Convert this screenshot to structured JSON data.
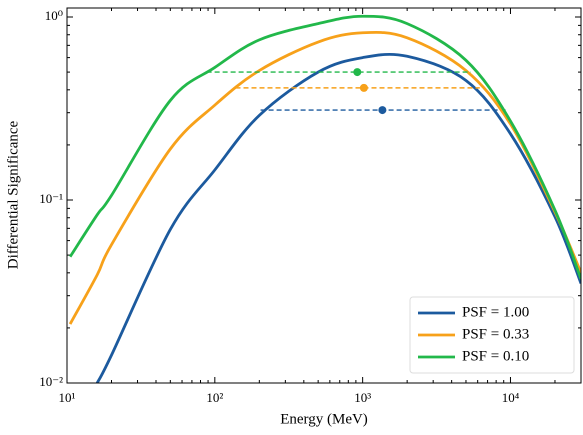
{
  "chart_data": {
    "type": "line",
    "xlabel": "Energy (MeV)",
    "ylabel": "Differential Significance",
    "xscale": "log",
    "yscale": "log",
    "xlim": [
      10,
      30000
    ],
    "ylim": [
      0.01,
      1.12
    ],
    "xticks": [
      {
        "value": 10,
        "label": "10¹"
      },
      {
        "value": 100,
        "label": "10²"
      },
      {
        "value": 1000,
        "label": "10³"
      },
      {
        "value": 10000,
        "label": "10⁴"
      }
    ],
    "yticks": [
      {
        "value": 0.01,
        "label": "10⁻²"
      },
      {
        "value": 0.1,
        "label": "10⁻¹"
      },
      {
        "value": 1,
        "label": "10⁰"
      }
    ],
    "legend": "lower right",
    "x": [
      10.5,
      16,
      20,
      50,
      100,
      200,
      500,
      1000,
      2000,
      5000,
      10000,
      20000,
      30000
    ],
    "series": [
      {
        "name": "PSF = 1.00",
        "color": "#1c5a9e",
        "values": [
          null,
          0.01,
          0.0142,
          0.069,
          0.146,
          0.29,
          0.5,
          0.6,
          0.61,
          0.45,
          0.23,
          0.081,
          0.035
        ],
        "band_x": [
          204,
          9400
        ],
        "band_y": 0.31,
        "marker_x": 1360
      },
      {
        "name": "PSF = 0.33",
        "color": "#f7a11a",
        "values": [
          0.021,
          0.039,
          0.057,
          0.19,
          0.33,
          0.51,
          0.73,
          0.82,
          0.77,
          0.51,
          0.26,
          0.086,
          0.04
        ],
        "band_x": [
          138,
          6200
        ],
        "band_y": 0.41,
        "marker_x": 1020
      },
      {
        "name": "PSF = 0.10",
        "color": "#22b84a",
        "values": [
          0.049,
          0.083,
          0.106,
          0.35,
          0.53,
          0.75,
          0.92,
          1.01,
          0.92,
          0.58,
          0.27,
          0.088,
          0.037
        ],
        "band_x": [
          88,
          5400
        ],
        "band_y": 0.5,
        "marker_x": 920
      }
    ]
  }
}
